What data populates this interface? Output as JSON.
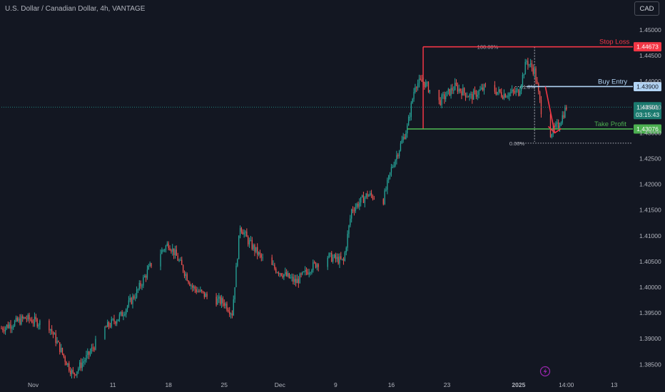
{
  "header": {
    "title": "U.S. Dollar / Canadian Dollar, 4h, VANTAGE",
    "currency_button": "CAD"
  },
  "colors": {
    "up": "#26a69a",
    "down": "#ef5350",
    "stop": "#f23645",
    "entry": "#b2d4f5",
    "profit": "#4caf50",
    "background": "#131722"
  },
  "chart_data": {
    "type": "candlestick",
    "title": "U.S. Dollar / Canadian Dollar, 4h, VANTAGE",
    "y_ticks": [
      "1.45000",
      "1.44500",
      "1.44000",
      "1.43500",
      "1.43000",
      "1.42500",
      "1.42000",
      "1.41500",
      "1.41000",
      "1.40500",
      "1.40000",
      "1.39500",
      "1.39000",
      "1.38500"
    ],
    "ylim": [
      1.3838,
      1.4525
    ],
    "x_ticks": [
      "Nov",
      "11",
      "18",
      "25",
      "Dec",
      "9",
      "16",
      "23",
      "2025",
      "14:00",
      "13"
    ],
    "x_tick_dates": [
      "2024-11-01",
      "2024-11-11",
      "2024-11-18",
      "2024-11-25",
      "2024-12-02",
      "2024-12-09",
      "2024-12-16",
      "2024-12-23",
      "2025-01-01",
      "2025-01-07",
      "2025-01-13"
    ],
    "xlim": [
      "2024-10-28",
      "2025-01-15"
    ],
    "price_path": [
      [
        "2024-10-28",
        1.392
      ],
      [
        "2024-10-31",
        1.394
      ],
      [
        "2024-11-03",
        1.3925
      ],
      [
        "2024-11-05",
        1.386
      ],
      [
        "2024-11-06",
        1.383
      ],
      [
        "2024-11-08",
        1.387
      ],
      [
        "2024-11-10",
        1.392
      ],
      [
        "2024-11-12",
        1.3945
      ],
      [
        "2024-11-14",
        1.399
      ],
      [
        "2024-11-16",
        1.405
      ],
      [
        "2024-11-18",
        1.4085
      ],
      [
        "2024-11-19",
        1.406
      ],
      [
        "2024-11-21",
        1.4
      ],
      [
        "2024-11-23",
        1.398
      ],
      [
        "2024-11-25",
        1.397
      ],
      [
        "2024-11-26",
        1.395
      ],
      [
        "2024-11-27",
        1.412
      ],
      [
        "2024-11-28",
        1.409
      ],
      [
        "2024-11-30",
        1.405
      ],
      [
        "2024-12-02",
        1.403
      ],
      [
        "2024-12-04",
        1.401
      ],
      [
        "2024-12-06",
        1.404
      ],
      [
        "2024-12-08",
        1.406
      ],
      [
        "2024-12-10",
        1.405
      ],
      [
        "2024-12-11",
        1.415
      ],
      [
        "2024-12-13",
        1.418
      ],
      [
        "2024-12-15",
        1.417
      ],
      [
        "2024-12-16",
        1.423
      ],
      [
        "2024-12-17",
        1.427
      ],
      [
        "2024-12-18",
        1.431
      ],
      [
        "2024-12-19",
        1.4395
      ],
      [
        "2024-12-20",
        1.44
      ],
      [
        "2024-12-22",
        1.436
      ],
      [
        "2024-12-24",
        1.439
      ],
      [
        "2024-12-26",
        1.437
      ],
      [
        "2024-12-28",
        1.439
      ],
      [
        "2024-12-30",
        1.4375
      ],
      [
        "2025-01-01",
        1.438
      ],
      [
        "2025-01-02",
        1.444
      ],
      [
        "2025-01-03",
        1.442
      ],
      [
        "2025-01-04",
        1.433
      ],
      [
        "2025-01-05",
        1.43
      ],
      [
        "2025-01-06",
        1.4315
      ],
      [
        "2025-01-07",
        1.435
      ]
    ],
    "current_price": 1.43501,
    "countdown": "03:15:43",
    "levels": [
      {
        "name": "Stop Loss",
        "value": 1.44673,
        "label": "1.44673",
        "color": "#f23645"
      },
      {
        "name": "Buy Entry",
        "value": 1.439,
        "label": "1.43900",
        "color": "#b2d4f5"
      },
      {
        "name": "Take Profit",
        "value": 1.43076,
        "label": "1.43076",
        "color": "#4caf50"
      }
    ],
    "fibonacci": [
      {
        "label": "100.00%",
        "value": 1.44673
      },
      {
        "label": "61.8%",
        "value": 1.439
      },
      {
        "label": "0.00%",
        "value": 1.428
      }
    ],
    "range_box": {
      "from": "2024-12-20",
      "to": "2025-01-03",
      "top": 1.44673,
      "bottom": 1.43076
    },
    "projection_arrow": {
      "from": [
        "2025-01-04",
        1.439
      ],
      "to": [
        "2025-01-05",
        1.43
      ]
    }
  }
}
